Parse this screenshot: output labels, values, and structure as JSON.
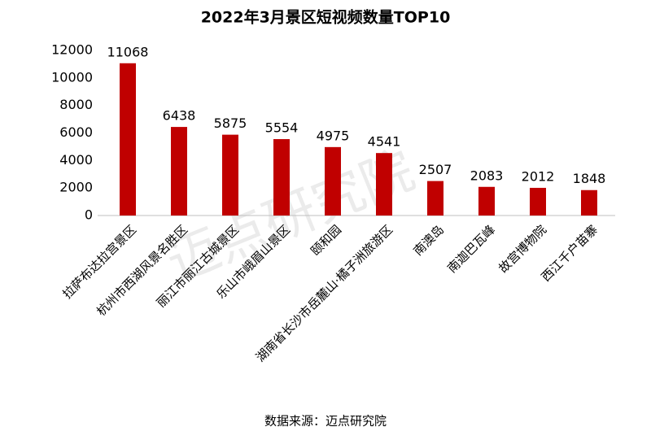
{
  "chart_data": {
    "type": "bar",
    "title": "2022年3月景区短视频数量TOP10",
    "categories": [
      "拉萨布达拉宫景区",
      "杭州市西湖风景名胜区",
      "丽江市丽江古城景区",
      "乐山市峨眉山景区",
      "颐和园",
      "湖南省长沙市岳麓山·橘子洲旅游区",
      "南澳岛",
      "南迦巴瓦峰",
      "故宫博物院",
      "西江千户苗寨"
    ],
    "values": [
      11068,
      6438,
      5875,
      5554,
      4975,
      4541,
      2507,
      2083,
      2012,
      1848
    ],
    "color": "#c00000",
    "ylim": [
      0,
      12000
    ],
    "yticks": [
      0,
      2000,
      4000,
      6000,
      8000,
      10000,
      12000
    ],
    "grid": false,
    "source": "数据来源：迈点研究院",
    "watermark": "迈点研究院"
  }
}
